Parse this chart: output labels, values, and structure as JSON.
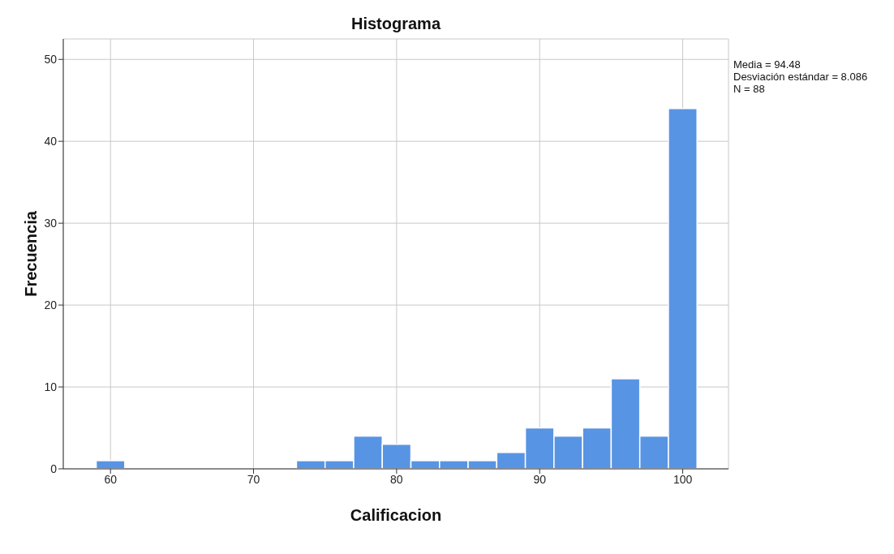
{
  "chart_data": {
    "type": "histogram",
    "title": "Histograma",
    "xlabel": "Calificacion",
    "ylabel": "Frecuencia",
    "bins": [
      59,
      61,
      63,
      65,
      67,
      69,
      71,
      73,
      75,
      77,
      79,
      81,
      83,
      85,
      87,
      89,
      91,
      93,
      95,
      97,
      99,
      101
    ],
    "values": [
      1,
      0,
      0,
      0,
      0,
      0,
      0,
      1,
      1,
      4,
      3,
      1,
      1,
      1,
      2,
      5,
      4,
      5,
      11,
      4,
      44
    ],
    "color": "#5894e4",
    "xlim": [
      56.7,
      103.2
    ],
    "xticks": [
      60,
      70,
      80,
      90,
      100
    ],
    "ylim": [
      0,
      52.5
    ],
    "yticks": [
      0,
      10,
      20,
      30,
      40,
      50
    ],
    "grid": true,
    "annotations": [
      "Media = 94.48",
      "Desviación estándar = 8.086",
      "N = 88"
    ]
  }
}
